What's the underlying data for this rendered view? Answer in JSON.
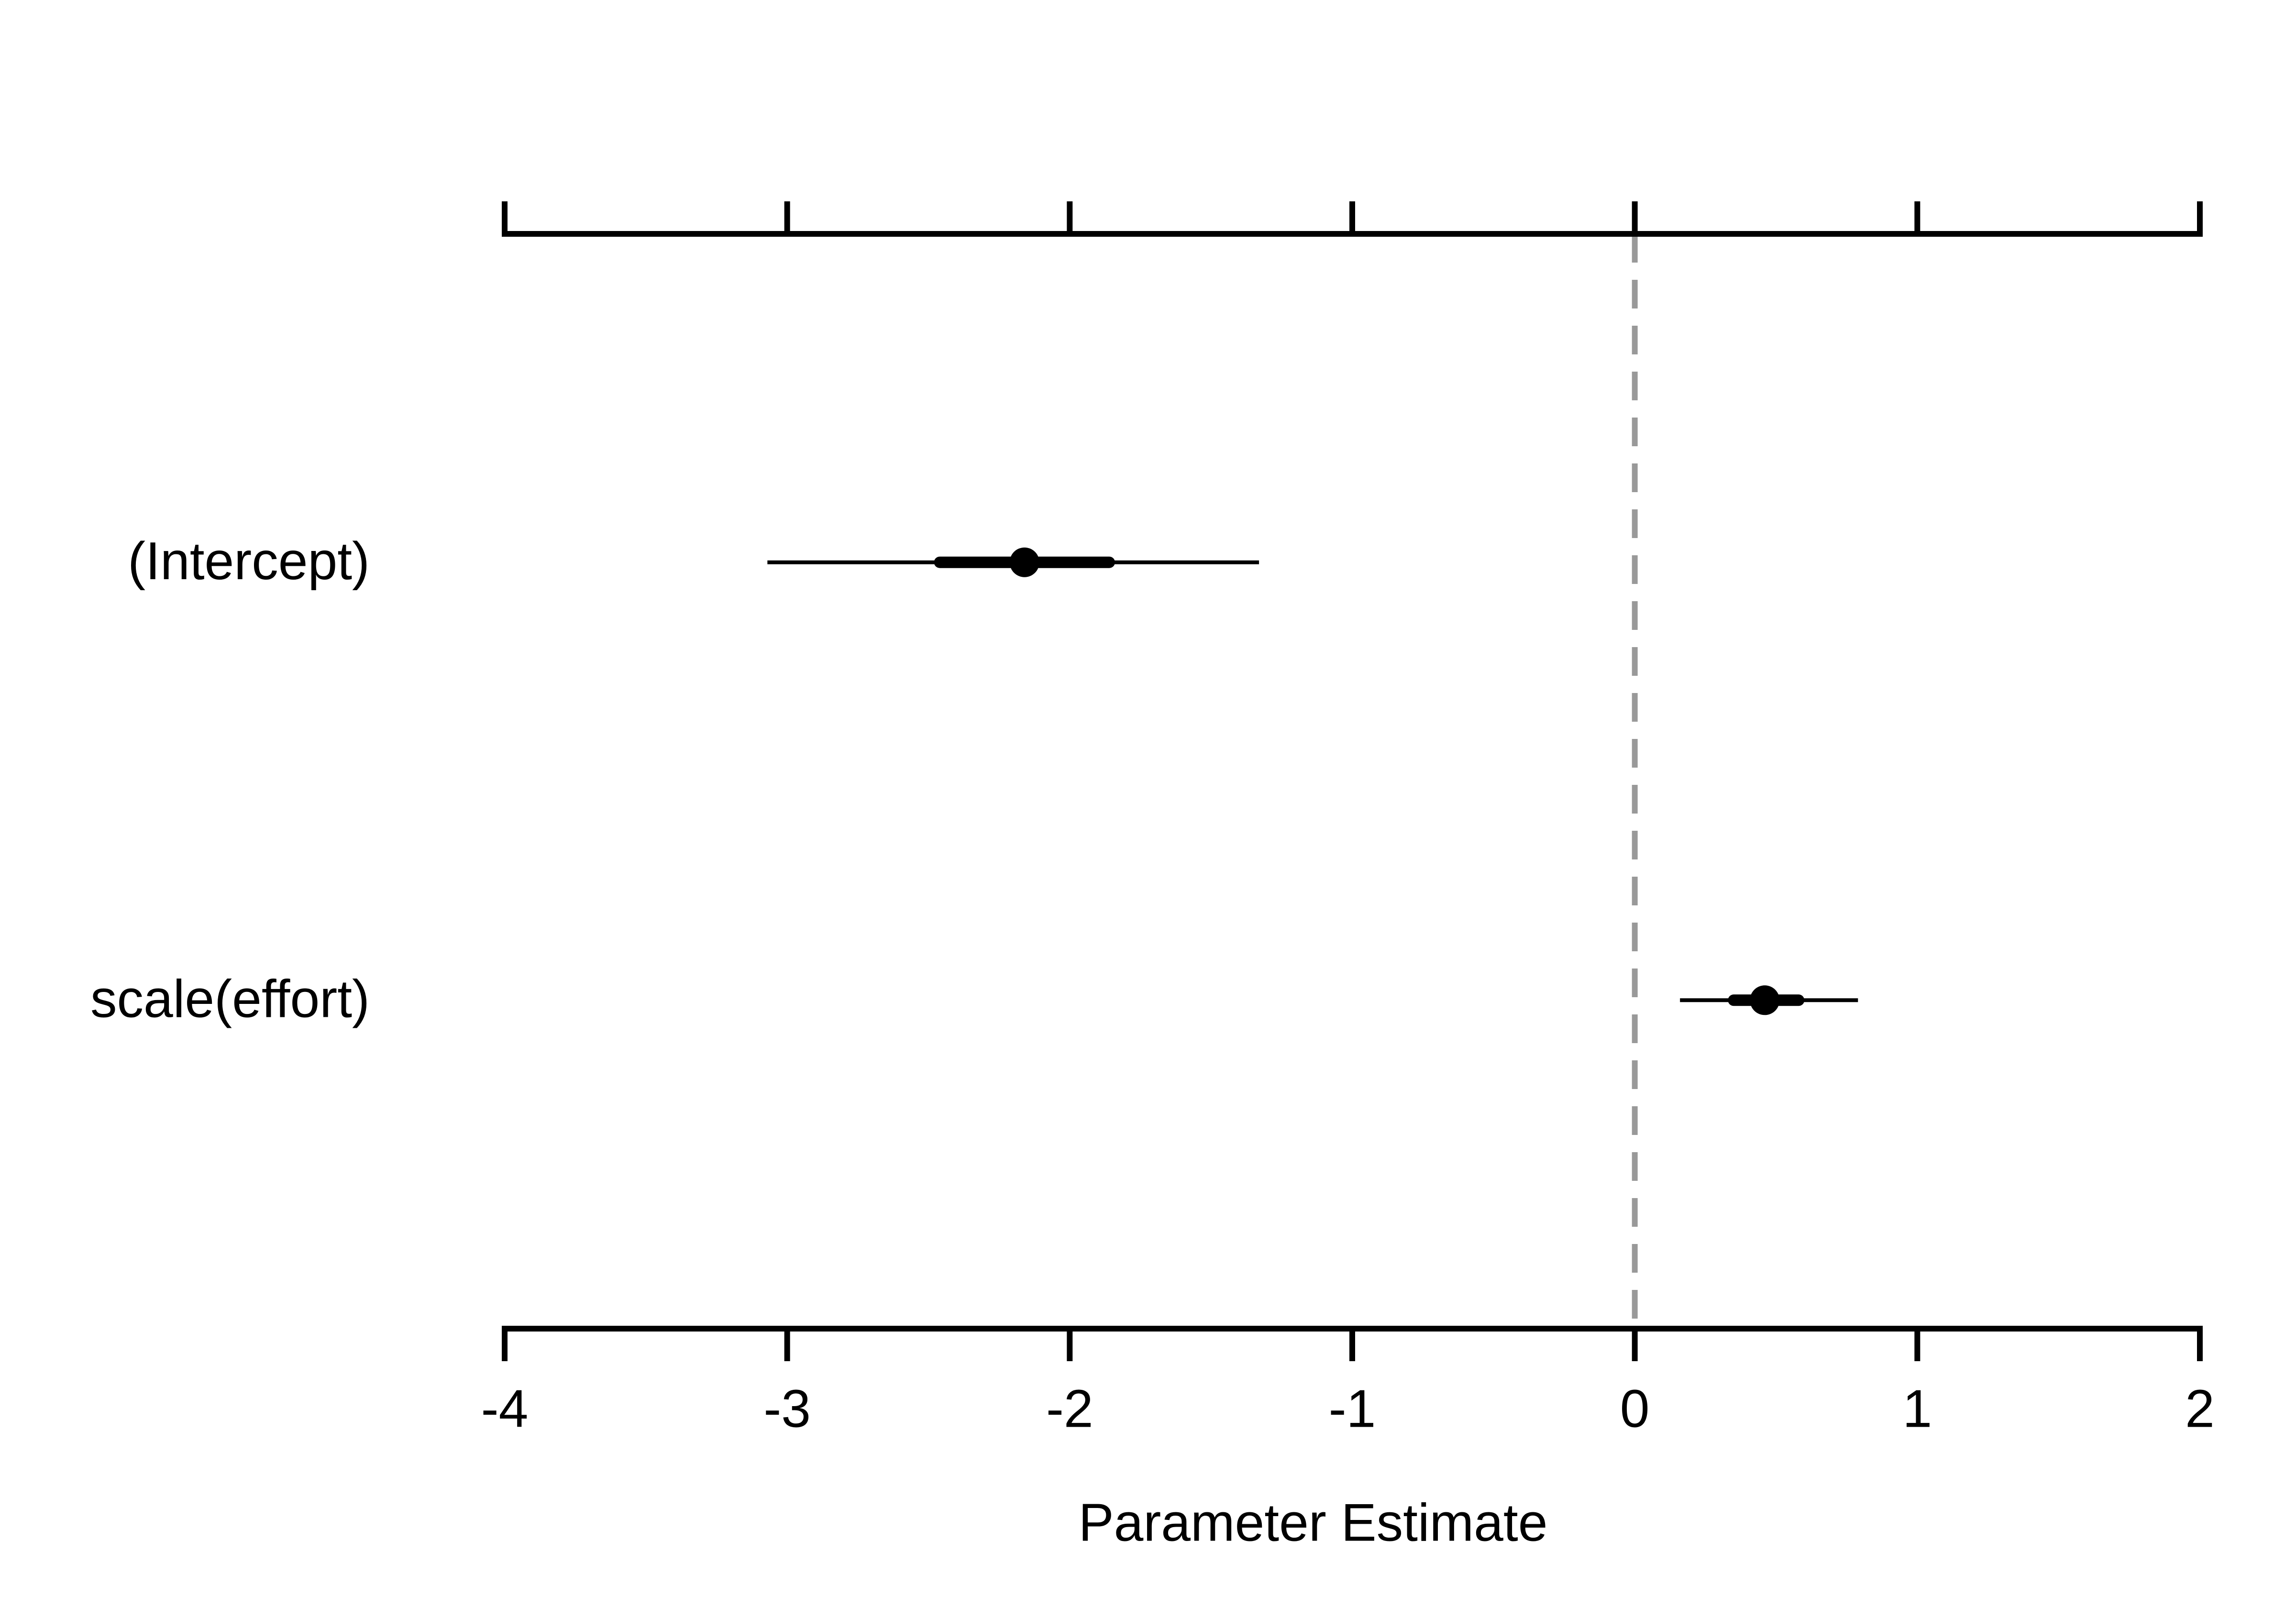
{
  "chart_data": {
    "type": "coefficient",
    "xlabel": "Parameter Estimate",
    "categories": [
      "(Intercept)",
      "scale(effort)"
    ],
    "values": [
      -2.16,
      0.46
    ],
    "lower_inner": [
      -2.46,
      0.35
    ],
    "upper_inner": [
      -1.86,
      0.58
    ],
    "lower_outer": [
      -3.07,
      0.16
    ],
    "upper_outer": [
      -1.33,
      0.79
    ],
    "color": "#000000",
    "reference_line": 0,
    "reference_color": "#999999",
    "top_axis": true,
    "xlim": [
      -4,
      2
    ],
    "xticks": [
      -4,
      -3,
      -2,
      -1,
      0,
      1,
      2
    ]
  }
}
